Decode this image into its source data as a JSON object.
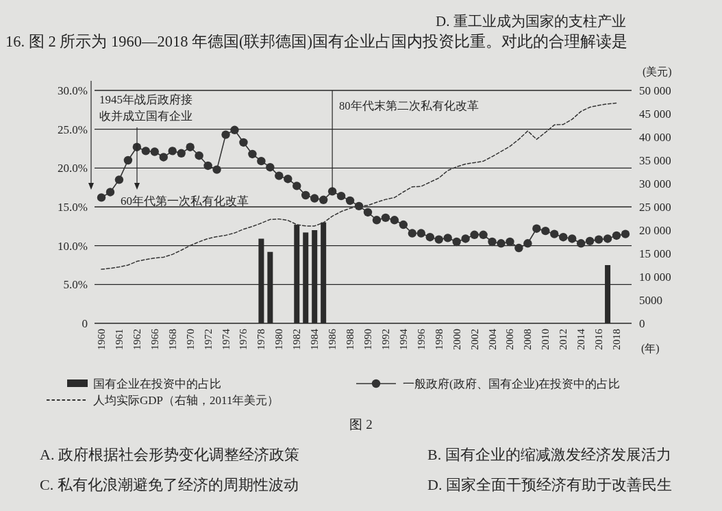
{
  "chart_data": {
    "type": "bar",
    "title": "16. 图 2 所示为 1960—2018 年德国(联邦德国)国有企业占国内投资比重。对此的合理解读是",
    "xlabel": "(年)",
    "y2label": "(美元)",
    "categories": [
      "1960",
      null,
      "1961",
      null,
      "1962",
      null,
      "1966",
      null,
      "1968",
      null,
      "1970",
      null,
      "1972",
      null,
      "1974",
      null,
      "1976",
      null,
      "1978",
      null,
      "1980",
      null,
      "1982",
      null,
      "1984",
      null,
      "1986",
      null,
      "1988",
      null,
      "1990",
      null,
      "1992",
      null,
      "1994",
      null,
      "1996",
      null,
      "1998",
      null,
      "2000",
      null,
      "2002",
      null,
      "2004",
      null,
      "2006",
      null,
      "2008",
      null,
      "2010",
      null,
      "2012",
      null,
      "2014",
      null,
      "2016",
      null,
      "2018",
      null
    ],
    "series": [
      {
        "name": "国有企业在投资中的占比",
        "color": "#2b2b2b",
        "values": [
          null,
          null,
          null,
          null,
          null,
          null,
          null,
          null,
          null,
          null,
          null,
          null,
          null,
          null,
          null,
          null,
          null,
          null,
          10.9,
          9.2,
          null,
          null,
          12.7,
          11.7,
          12.0,
          13.0,
          null,
          null,
          null,
          null,
          null,
          null,
          null,
          null,
          null,
          null,
          null,
          null,
          null,
          null,
          null,
          null,
          null,
          null,
          null,
          null,
          null,
          null,
          null,
          null,
          null,
          null,
          null,
          null,
          null,
          null,
          null,
          7.5,
          null,
          null
        ]
      },
      {
        "name": "一般政府(政府、国有企业)在投资中的占比",
        "type": "line",
        "color": "#333333",
        "marker": "circle",
        "values": [
          16.2,
          16.9,
          18.5,
          21.0,
          22.7,
          22.2,
          22.1,
          21.4,
          22.2,
          21.9,
          22.7,
          21.6,
          20.3,
          19.8,
          24.3,
          24.9,
          23.3,
          21.8,
          20.9,
          20.1,
          19.0,
          18.6,
          17.7,
          16.5,
          16.1,
          15.9,
          17.0,
          16.4,
          15.8,
          15.1,
          14.3,
          13.3,
          13.6,
          13.3,
          12.7,
          11.6,
          11.6,
          11.1,
          10.8,
          11.0,
          10.5,
          10.9,
          11.4,
          11.4,
          10.5,
          10.3,
          10.5,
          9.7,
          10.3,
          12.2,
          11.9,
          11.5,
          11.1,
          10.9,
          10.3,
          10.6,
          10.8,
          10.9,
          11.3,
          11.5
        ]
      },
      {
        "name": "人均实际GDP（右轴，2011年美元）",
        "type": "line",
        "axis": "y2",
        "color": "#333333",
        "line_style": "dashed",
        "values": [
          11600,
          11800,
          12100,
          12500,
          13300,
          13700,
          14000,
          14200,
          14800,
          15700,
          16700,
          17500,
          18200,
          18600,
          18900,
          19400,
          20200,
          20800,
          21500,
          22300,
          22400,
          22100,
          21200,
          20900,
          20900,
          21600,
          23000,
          24000,
          24700,
          25200,
          25300,
          26000,
          26600,
          27000,
          28200,
          29300,
          29400,
          30300,
          31200,
          32800,
          33600,
          34200,
          34500,
          34800,
          35800,
          36900,
          38000,
          39500,
          41300,
          39500,
          41000,
          42600,
          42700,
          43800,
          45500,
          46400,
          46800,
          47100,
          47300,
          null
        ]
      }
    ],
    "ylim": [
      0,
      30
    ],
    "yticks": [
      0,
      {
        "value": 5,
        "label": "5.0%"
      },
      {
        "value": 10,
        "label": "10.0%"
      },
      {
        "value": 15,
        "label": "15.0%"
      },
      {
        "value": 20,
        "label": "20.0%"
      },
      {
        "value": 25,
        "label": "25.0%"
      },
      {
        "value": 30,
        "label": "30.0%"
      }
    ],
    "y2lim": [
      0,
      50000
    ],
    "y2ticks": [
      0,
      5000,
      {
        "value": 10000,
        "label": "10 000"
      },
      {
        "value": 15000,
        "label": "15 000"
      },
      {
        "value": 20000,
        "label": "20 000"
      },
      {
        "value": 25000,
        "label": "25 000"
      },
      {
        "value": 30000,
        "label": "30 000"
      },
      {
        "value": 35000,
        "label": "35 000"
      },
      {
        "value": 40000,
        "label": "40 000"
      },
      {
        "value": 45000,
        "label": "45 000"
      },
      {
        "value": 50000,
        "label": "50 000"
      }
    ],
    "grid": "y",
    "legend": "bottom",
    "annotations": [
      "1945年战后政府接收并成立国有企业",
      "60年代第一次私有化改革",
      {
        "text": "80年代末第二次私有化改革",
        "x": "1986",
        "y": 17.0
      },
      "图 2",
      "A. 政府根据社会形势变化调整经济政策",
      "B. 国有企业的缩减激发经济发展活力",
      "C. 私有化浪潮避免了经济的周期性波动",
      "D. 国家全面干预经济有助于改善民生",
      "D. 重工业成为国家的支柱产业"
    ]
  }
}
